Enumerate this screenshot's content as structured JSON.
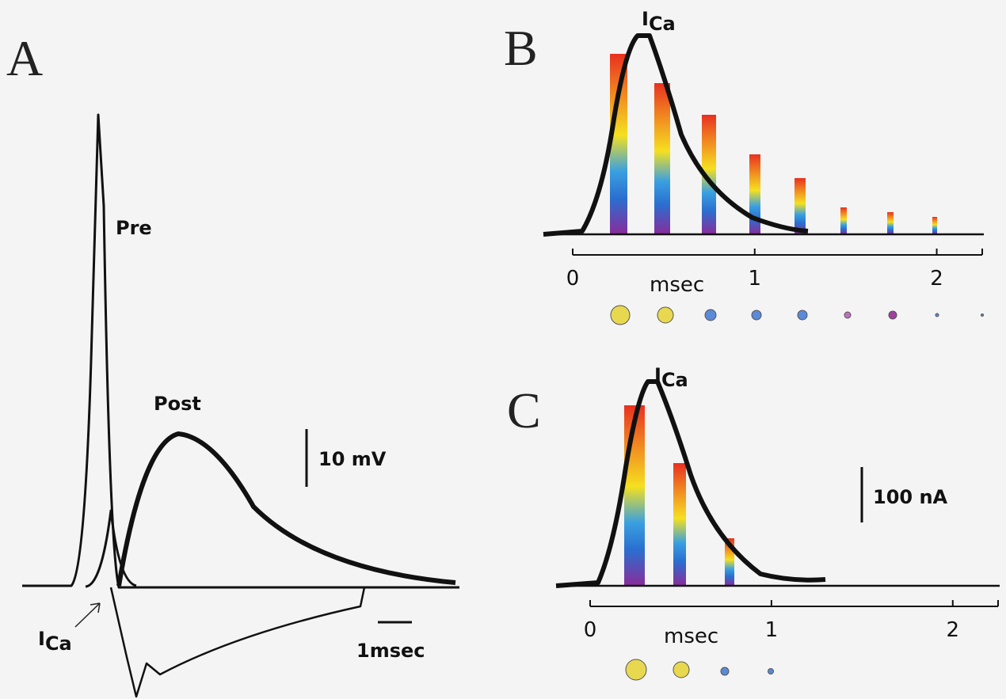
{
  "panel_a": {
    "label": "A",
    "pre_label": "Pre",
    "post_label": "Post",
    "ica_main": "I",
    "ica_sub": "Ca",
    "scale_voltage": "10 mV",
    "scale_time": "1msec"
  },
  "panel_b": {
    "label": "B",
    "ica_main": "I",
    "ica_sub": "Ca",
    "xlabel": "msec",
    "xlim": [
      0,
      2.25
    ],
    "xticks": [
      0,
      1,
      2
    ]
  },
  "panel_c": {
    "label": "C",
    "ica_main": "I",
    "ica_sub": "Ca",
    "xlabel": "msec",
    "scale_current": "100 nA",
    "xlim": [
      0,
      2.25
    ],
    "xticks": [
      0,
      1,
      2
    ]
  }
}
